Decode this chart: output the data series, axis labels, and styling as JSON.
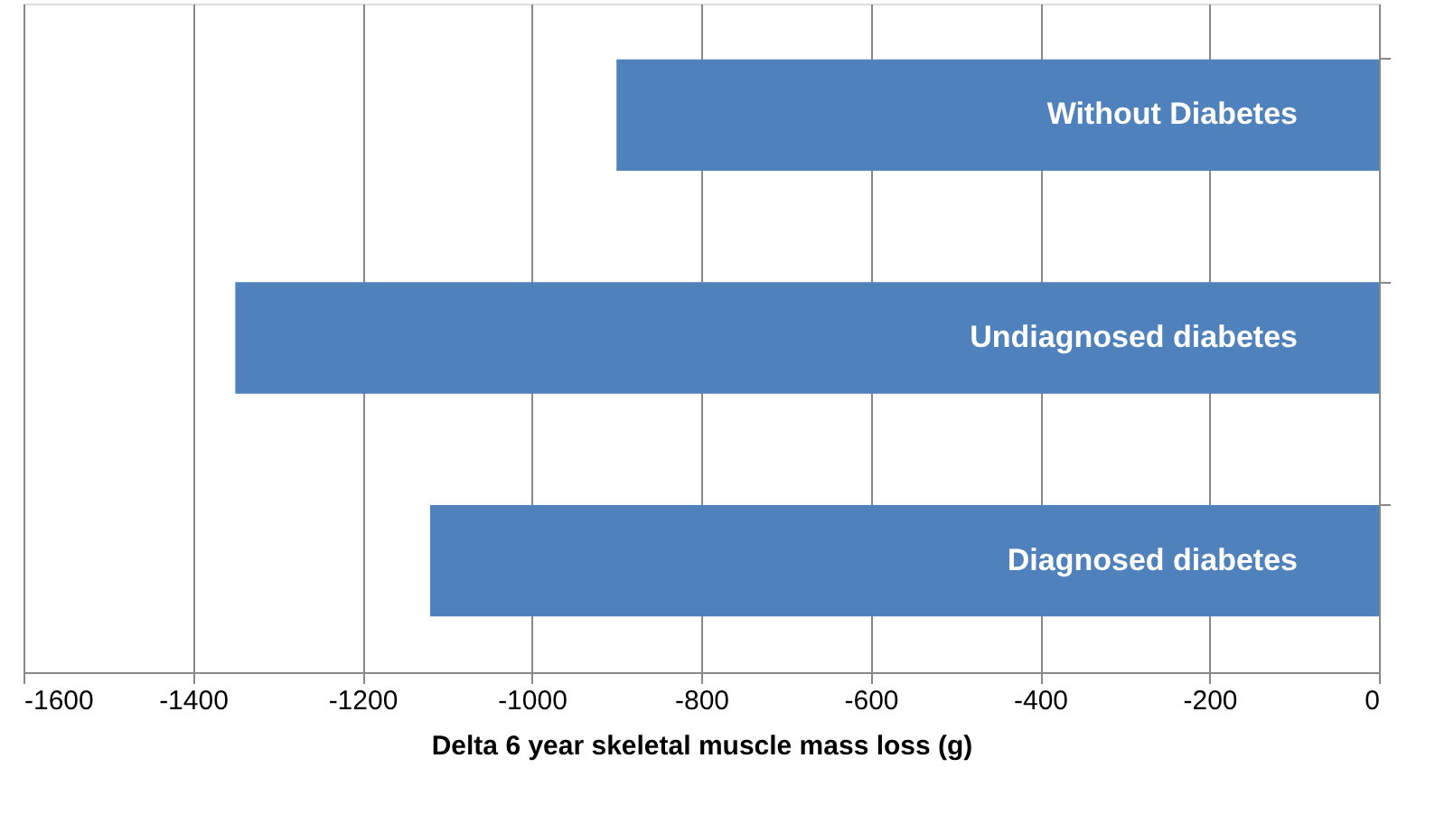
{
  "chart_data": {
    "type": "bar",
    "orientation": "horizontal",
    "xlabel": "Delta 6 year skeletal muscle mass loss (g)",
    "categories": [
      "Without Diabetes",
      "Undiagnosed diabetes",
      "Diagnosed diabetes"
    ],
    "values": [
      -900,
      -1350,
      -1120
    ],
    "color": "#4f81bd",
    "xlim": [
      -1600,
      0
    ],
    "xticks": [
      -1600,
      -1400,
      -1200,
      -1000,
      -800,
      -600,
      -400,
      -200,
      0
    ],
    "grid": "x"
  }
}
